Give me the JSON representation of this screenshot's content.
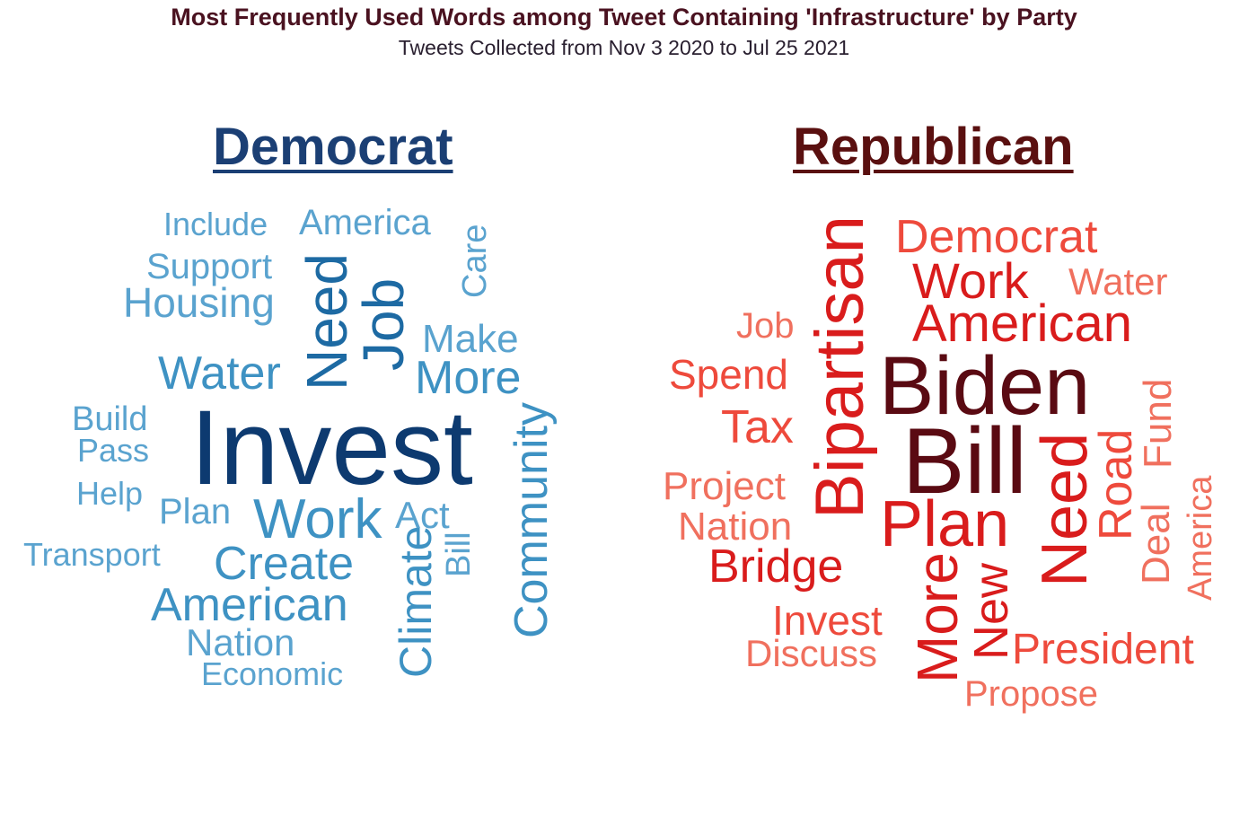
{
  "title": "Most Frequently Used Words among Tweet Containing 'Infrastructure' by Party",
  "subtitle": "Tweets Collected from Nov 3 2020 to Jul 25 2021",
  "chart_data": [
    {
      "type": "wordcloud",
      "title": "Democrat",
      "colors": [
        "#0d3a70",
        "#1d6aa3",
        "#3e92c3",
        "#5aa3cf"
      ],
      "words": [
        {
          "text": "Invest",
          "size": 118,
          "weight": 1.0,
          "color": "#0d3a70"
        },
        {
          "text": "Job",
          "size": 64,
          "weight": 0.62,
          "color": "#1d6aa3",
          "rotated": true
        },
        {
          "text": "Need",
          "size": 64,
          "weight": 0.6,
          "color": "#1d6aa3",
          "rotated": true
        },
        {
          "text": "Work",
          "size": 62,
          "weight": 0.55,
          "color": "#3e92c3"
        },
        {
          "text": "Water",
          "size": 52,
          "weight": 0.45,
          "color": "#3e92c3"
        },
        {
          "text": "More",
          "size": 52,
          "weight": 0.45,
          "color": "#3e92c3"
        },
        {
          "text": "Create",
          "size": 52,
          "weight": 0.45,
          "color": "#3e92c3"
        },
        {
          "text": "American",
          "size": 52,
          "weight": 0.45,
          "color": "#3e92c3"
        },
        {
          "text": "Community",
          "size": 52,
          "weight": 0.45,
          "color": "#3e92c3",
          "rotated": true
        },
        {
          "text": "Climate",
          "size": 50,
          "weight": 0.42,
          "color": "#3e92c3",
          "rotated": true
        },
        {
          "text": "Housing",
          "size": 46,
          "weight": 0.38,
          "color": "#5aa3cf"
        },
        {
          "text": "Make",
          "size": 44,
          "weight": 0.36,
          "color": "#5aa3cf"
        },
        {
          "text": "Act",
          "size": 42,
          "weight": 0.34,
          "color": "#5aa3cf"
        },
        {
          "text": "Nation",
          "size": 42,
          "weight": 0.34,
          "color": "#5aa3cf"
        },
        {
          "text": "Plan",
          "size": 40,
          "weight": 0.32,
          "color": "#5aa3cf"
        },
        {
          "text": "America",
          "size": 40,
          "weight": 0.32,
          "color": "#5aa3cf"
        },
        {
          "text": "Support",
          "size": 40,
          "weight": 0.32,
          "color": "#5aa3cf"
        },
        {
          "text": "Build",
          "size": 38,
          "weight": 0.3,
          "color": "#5aa3cf"
        },
        {
          "text": "Care",
          "size": 38,
          "weight": 0.3,
          "color": "#5aa3cf",
          "rotated": true
        },
        {
          "text": "Bill",
          "size": 38,
          "weight": 0.3,
          "color": "#5aa3cf",
          "rotated": true
        },
        {
          "text": "Include",
          "size": 36,
          "weight": 0.28,
          "color": "#5aa3cf"
        },
        {
          "text": "Pass",
          "size": 36,
          "weight": 0.28,
          "color": "#5aa3cf"
        },
        {
          "text": "Help",
          "size": 36,
          "weight": 0.28,
          "color": "#5aa3cf"
        },
        {
          "text": "Transport",
          "size": 36,
          "weight": 0.28,
          "color": "#5aa3cf"
        },
        {
          "text": "Economic",
          "size": 36,
          "weight": 0.28,
          "color": "#5aa3cf"
        }
      ]
    },
    {
      "type": "wordcloud",
      "title": "Republican",
      "colors": [
        "#5a0a12",
        "#d91c1c",
        "#ee4a3c",
        "#f0705e"
      ],
      "words": [
        {
          "text": "Bill",
          "size": 104,
          "weight": 1.0,
          "color": "#5a0a12"
        },
        {
          "text": "Biden",
          "size": 92,
          "weight": 0.9,
          "color": "#5a0a12"
        },
        {
          "text": "Bipartisan",
          "size": 76,
          "weight": 0.75,
          "color": "#d91c1c",
          "rotated": true
        },
        {
          "text": "Plan",
          "size": 72,
          "weight": 0.7,
          "color": "#d91c1c"
        },
        {
          "text": "Need",
          "size": 72,
          "weight": 0.7,
          "color": "#d91c1c",
          "rotated": true
        },
        {
          "text": "More",
          "size": 64,
          "weight": 0.6,
          "color": "#d91c1c",
          "rotated": true
        },
        {
          "text": "American",
          "size": 58,
          "weight": 0.55,
          "color": "#d91c1c"
        },
        {
          "text": "Work",
          "size": 56,
          "weight": 0.52,
          "color": "#d91c1c"
        },
        {
          "text": "New",
          "size": 54,
          "weight": 0.5,
          "color": "#d91c1c",
          "rotated": true
        },
        {
          "text": "Bridge",
          "size": 52,
          "weight": 0.48,
          "color": "#d91c1c"
        },
        {
          "text": "Democrat",
          "size": 52,
          "weight": 0.48,
          "color": "#ee4a3c"
        },
        {
          "text": "Road",
          "size": 52,
          "weight": 0.48,
          "color": "#ee4a3c",
          "rotated": true
        },
        {
          "text": "Tax",
          "size": 52,
          "weight": 0.48,
          "color": "#ee4a3c"
        },
        {
          "text": "President",
          "size": 48,
          "weight": 0.44,
          "color": "#ee4a3c"
        },
        {
          "text": "Invest",
          "size": 46,
          "weight": 0.42,
          "color": "#ee4a3c"
        },
        {
          "text": "Spend",
          "size": 46,
          "weight": 0.42,
          "color": "#ee4a3c"
        },
        {
          "text": "Project",
          "size": 44,
          "weight": 0.4,
          "color": "#f0705e"
        },
        {
          "text": "Nation",
          "size": 44,
          "weight": 0.4,
          "color": "#f0705e"
        },
        {
          "text": "Deal",
          "size": 44,
          "weight": 0.4,
          "color": "#f0705e",
          "rotated": true
        },
        {
          "text": "Fund",
          "size": 44,
          "weight": 0.4,
          "color": "#f0705e",
          "rotated": true
        },
        {
          "text": "Discuss",
          "size": 42,
          "weight": 0.38,
          "color": "#f0705e"
        },
        {
          "text": "Water",
          "size": 42,
          "weight": 0.38,
          "color": "#f0705e"
        },
        {
          "text": "Propose",
          "size": 40,
          "weight": 0.36,
          "color": "#f0705e"
        },
        {
          "text": "Job",
          "size": 40,
          "weight": 0.36,
          "color": "#f0705e"
        },
        {
          "text": "America",
          "size": 38,
          "weight": 0.34,
          "color": "#f0705e",
          "rotated": true
        }
      ]
    }
  ]
}
